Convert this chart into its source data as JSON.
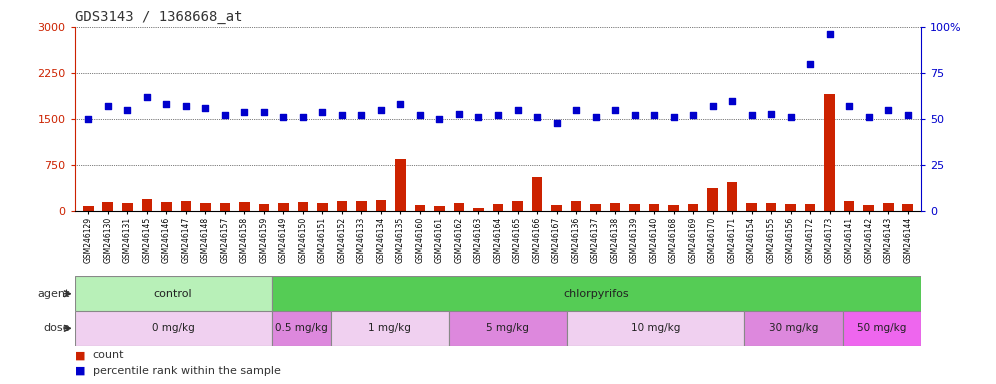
{
  "title": "GDS3143 / 1368668_at",
  "samples": [
    "GSM246129",
    "GSM246130",
    "GSM246131",
    "GSM246145",
    "GSM246146",
    "GSM246147",
    "GSM246148",
    "GSM246157",
    "GSM246158",
    "GSM246159",
    "GSM246149",
    "GSM246150",
    "GSM246151",
    "GSM246152",
    "GSM246133",
    "GSM246134",
    "GSM246135",
    "GSM246160",
    "GSM246161",
    "GSM246162",
    "GSM246163",
    "GSM246164",
    "GSM246165",
    "GSM246166",
    "GSM246167",
    "GSM246136",
    "GSM246137",
    "GSM246138",
    "GSM246139",
    "GSM246140",
    "GSM246168",
    "GSM246169",
    "GSM246170",
    "GSM246171",
    "GSM246154",
    "GSM246155",
    "GSM246156",
    "GSM246172",
    "GSM246173",
    "GSM246141",
    "GSM246142",
    "GSM246143",
    "GSM246144"
  ],
  "count_values": [
    80,
    150,
    140,
    200,
    150,
    160,
    140,
    130,
    150,
    110,
    130,
    150,
    140,
    160,
    160,
    180,
    850,
    100,
    90,
    130,
    60,
    120,
    160,
    550,
    100,
    170,
    120,
    130,
    110,
    120,
    100,
    110,
    370,
    480,
    130,
    140,
    120,
    120,
    1900,
    170,
    100,
    130,
    110
  ],
  "percentile_values": [
    50,
    57,
    55,
    62,
    58,
    57,
    56,
    52,
    54,
    54,
    51,
    51,
    54,
    52,
    52,
    55,
    58,
    52,
    50,
    53,
    51,
    52,
    55,
    51,
    48,
    55,
    51,
    55,
    52,
    52,
    51,
    52,
    57,
    60,
    52,
    53,
    51,
    80,
    96,
    57,
    51,
    55,
    52
  ],
  "bar_color": "#cc2200",
  "dot_color": "#0000cc",
  "ylim_left": [
    0,
    3000
  ],
  "ylim_right": [
    0,
    100
  ],
  "yticks_left": [
    0,
    750,
    1500,
    2250,
    3000
  ],
  "yticks_right": [
    0,
    25,
    50,
    75,
    100
  ],
  "agent_groups": [
    {
      "label": "control",
      "start": 0,
      "end": 10,
      "color": "#b8f0b8"
    },
    {
      "label": "chlorpyrifos",
      "start": 10,
      "end": 43,
      "color": "#55cc55"
    }
  ],
  "dose_groups": [
    {
      "label": "0 mg/kg",
      "start": 0,
      "end": 10,
      "color": "#f0d0f0"
    },
    {
      "label": "0.5 mg/kg",
      "start": 10,
      "end": 13,
      "color": "#dd88dd"
    },
    {
      "label": "1 mg/kg",
      "start": 13,
      "end": 19,
      "color": "#f0d0f0"
    },
    {
      "label": "5 mg/kg",
      "start": 19,
      "end": 25,
      "color": "#dd88dd"
    },
    {
      "label": "10 mg/kg",
      "start": 25,
      "end": 34,
      "color": "#f0d0f0"
    },
    {
      "label": "30 mg/kg",
      "start": 34,
      "end": 39,
      "color": "#dd88dd"
    },
    {
      "label": "50 mg/kg",
      "start": 39,
      "end": 43,
      "color": "#ee66ee"
    }
  ],
  "background_color": "#ffffff",
  "title_color": "#333333",
  "left_axis_color": "#cc2200",
  "right_axis_color": "#0000cc",
  "agent_label_color": "#333333",
  "dose_label_color": "#333333"
}
